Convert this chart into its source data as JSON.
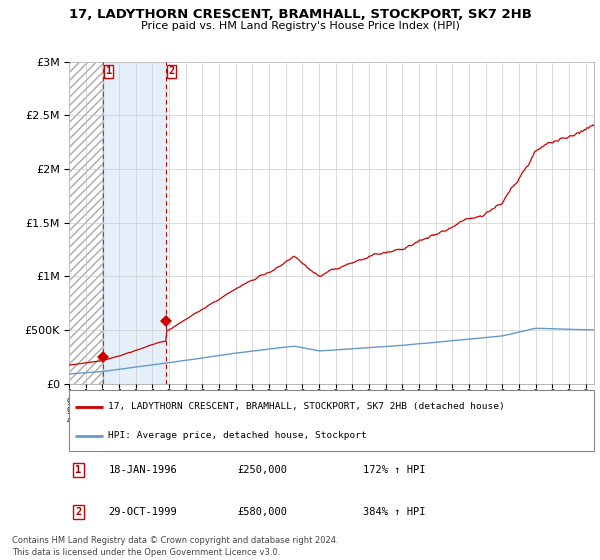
{
  "title": "17, LADYTHORN CRESCENT, BRAMHALL, STOCKPORT, SK7 2HB",
  "subtitle": "Price paid vs. HM Land Registry's House Price Index (HPI)",
  "legend_line1": "17, LADYTHORN CRESCENT, BRAMHALL, STOCKPORT, SK7 2HB (detached house)",
  "legend_line2": "HPI: Average price, detached house, Stockport",
  "purchase1_date": "18-JAN-1996",
  "purchase1_price": 250000,
  "purchase1_hpi": "172% ↑ HPI",
  "purchase2_date": "29-OCT-1999",
  "purchase2_price": 580000,
  "purchase2_hpi": "384% ↑ HPI",
  "footnote": "Contains HM Land Registry data © Crown copyright and database right 2024.\nThis data is licensed under the Open Government Licence v3.0.",
  "red_line_color": "#cc0000",
  "blue_line_color": "#6699cc",
  "shading_color": "#ddeeff",
  "ylim": [
    0,
    3000000
  ],
  "yticks": [
    0,
    500000,
    1000000,
    1500000,
    2000000,
    2500000,
    3000000
  ],
  "purchase1_year": 1996.05,
  "purchase2_year": 1999.83,
  "xmin": 1994,
  "xmax": 2025.5
}
